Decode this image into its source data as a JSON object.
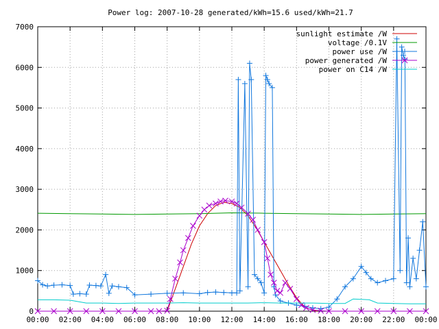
{
  "chart_data": {
    "type": "line",
    "title": "Power log: 2007-10-28 generated/kWh=15.6 used/kWh=21.7",
    "xlabel": "",
    "ylabel": "",
    "xlim": [
      0,
      24
    ],
    "ylim": [
      0,
      7000
    ],
    "grid": true,
    "legend_position": "top-right",
    "x_ticks": [
      "00:00",
      "02:00",
      "04:00",
      "06:00",
      "08:00",
      "10:00",
      "12:00",
      "14:00",
      "16:00",
      "18:00",
      "20:00",
      "22:00",
      "00:00"
    ],
    "y_ticks": [
      0,
      1000,
      2000,
      3000,
      4000,
      5000,
      6000,
      7000
    ],
    "series": [
      {
        "name": "sunlight estimate /W",
        "color": "#cc0000",
        "marker": "none",
        "x": [
          8.0,
          8.5,
          9.0,
          9.5,
          10.0,
          10.5,
          11.0,
          11.5,
          12.0,
          12.5,
          13.0,
          13.5,
          14.0,
          14.5,
          15.0,
          15.5,
          16.0,
          16.5,
          17.0,
          17.3
        ],
        "y": [
          0,
          550,
          1100,
          1650,
          2100,
          2400,
          2600,
          2680,
          2650,
          2550,
          2350,
          2050,
          1700,
          1350,
          1000,
          650,
          330,
          100,
          20,
          0
        ]
      },
      {
        "name": "voltage /0.1V",
        "color": "#009900",
        "marker": "none",
        "x": [
          0.0,
          2.0,
          4.0,
          6.0,
          8.0,
          10.0,
          12.0,
          14.0,
          16.0,
          18.0,
          20.0,
          22.0,
          24.0
        ],
        "y": [
          2410,
          2400,
          2390,
          2380,
          2390,
          2400,
          2420,
          2410,
          2400,
          2390,
          2380,
          2390,
          2400
        ]
      },
      {
        "name": "power use /W",
        "color": "#1177dd",
        "marker": "plus",
        "x": [
          0.0,
          0.3,
          0.6,
          1.0,
          1.5,
          2.0,
          2.2,
          2.6,
          3.0,
          3.2,
          3.6,
          3.9,
          4.2,
          4.4,
          4.6,
          5.0,
          5.5,
          6.0,
          7.0,
          8.0,
          9.0,
          10.0,
          10.5,
          11.0,
          11.5,
          12.0,
          12.3,
          12.4,
          12.5,
          12.8,
          13.0,
          13.1,
          13.2,
          13.4,
          13.6,
          13.8,
          14.0,
          14.1,
          14.2,
          14.3,
          14.5,
          14.6,
          14.7,
          15.0,
          15.5,
          16.0,
          16.5,
          17.0,
          17.5,
          18.0,
          18.5,
          19.0,
          19.5,
          20.0,
          20.3,
          20.6,
          21.0,
          21.5,
          22.0,
          22.2,
          22.4,
          22.5,
          22.6,
          22.7,
          22.8,
          22.9,
          23.0,
          23.2,
          23.4,
          23.6,
          23.8,
          24.0
        ],
        "y": [
          750,
          650,
          620,
          640,
          650,
          630,
          420,
          430,
          420,
          640,
          630,
          620,
          900,
          440,
          620,
          600,
          580,
          400,
          420,
          440,
          450,
          430,
          460,
          470,
          460,
          450,
          450,
          5700,
          500,
          5600,
          600,
          6100,
          5700,
          900,
          800,
          700,
          450,
          5800,
          5700,
          5600,
          5500,
          600,
          400,
          250,
          200,
          150,
          120,
          80,
          60,
          100,
          300,
          600,
          800,
          1100,
          950,
          800,
          700,
          750,
          800,
          6700,
          1000,
          6500,
          6300,
          6200,
          700,
          1800,
          600,
          1300,
          800,
          1500,
          2200,
          600
        ]
      },
      {
        "name": "power generated /W",
        "color": "#aa00cc",
        "marker": "x",
        "x": [
          0.0,
          1.0,
          2.0,
          3.0,
          4.0,
          5.0,
          6.0,
          7.0,
          7.5,
          8.0,
          8.2,
          8.5,
          8.8,
          9.0,
          9.3,
          9.6,
          10.0,
          10.3,
          10.6,
          11.0,
          11.3,
          11.6,
          12.0,
          12.3,
          12.6,
          13.0,
          13.3,
          13.6,
          14.0,
          14.2,
          14.4,
          14.6,
          14.8,
          15.0,
          15.3,
          15.6,
          16.0,
          16.3,
          16.6,
          17.0,
          17.5,
          18.0,
          19.0,
          20.0,
          21.0,
          22.0,
          23.0,
          24.0
        ],
        "y": [
          0,
          0,
          0,
          0,
          0,
          0,
          0,
          0,
          0,
          10,
          300,
          800,
          1200,
          1500,
          1800,
          2100,
          2350,
          2500,
          2600,
          2650,
          2700,
          2720,
          2700,
          2650,
          2550,
          2400,
          2250,
          2000,
          1700,
          1300,
          900,
          700,
          500,
          450,
          700,
          550,
          300,
          150,
          80,
          30,
          10,
          0,
          0,
          0,
          0,
          0,
          0,
          0
        ]
      },
      {
        "name": "power on C14 /W",
        "color": "#00cccc",
        "marker": "none",
        "x": [
          0.0,
          1.0,
          2.0,
          3.0,
          4.0,
          5.0,
          6.0,
          7.0,
          8.0,
          9.0,
          10.0,
          11.0,
          12.0,
          13.0,
          14.0,
          15.0,
          16.0,
          17.0,
          18.0,
          19.0,
          19.5,
          20.0,
          20.5,
          21.0,
          22.0,
          23.0,
          24.0
        ],
        "y": [
          280,
          280,
          270,
          200,
          200,
          190,
          200,
          200,
          200,
          210,
          200,
          200,
          200,
          200,
          210,
          200,
          200,
          200,
          190,
          190,
          300,
          290,
          280,
          200,
          190,
          180,
          180
        ]
      }
    ]
  }
}
